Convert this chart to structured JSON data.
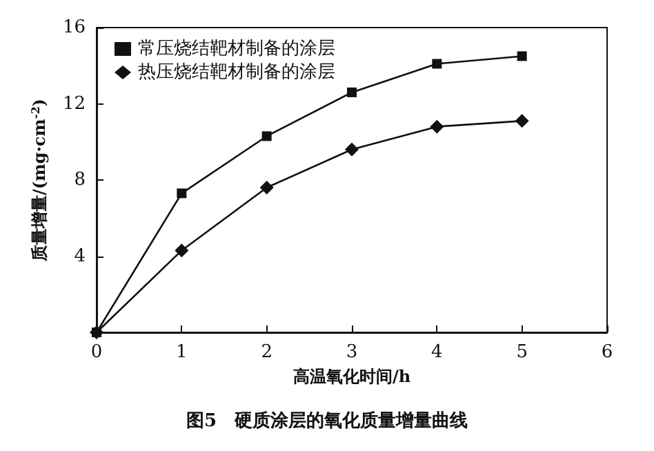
{
  "chart_data": {
    "type": "line",
    "title": "图5　硬质涂层的氧化质量增量曲线",
    "xlabel": "高温氧化时间/h",
    "ylabel": "质量增量/(mg·cm$^{-2}$)",
    "x": [
      0,
      1,
      2,
      3,
      4,
      5
    ],
    "series": [
      {
        "name": "常压烧结靶材制备的涂层",
        "color": "#111111",
        "marker": "square",
        "values": [
          0,
          7.3,
          10.3,
          12.6,
          14.1,
          14.5
        ]
      },
      {
        "name": "热压烧结靶材制备的涂层",
        "color": "#111111",
        "marker": "diamond",
        "values": [
          0,
          4.3,
          7.6,
          9.6,
          10.8,
          11.1
        ]
      }
    ],
    "xlim": [
      0,
      6
    ],
    "xticks": [
      0,
      1,
      2,
      3,
      4,
      5,
      6
    ],
    "ylim": [
      0,
      16
    ],
    "yticks": [
      4,
      8,
      12,
      16
    ],
    "grid": false,
    "legend": "top left",
    "line_style": "solid"
  }
}
